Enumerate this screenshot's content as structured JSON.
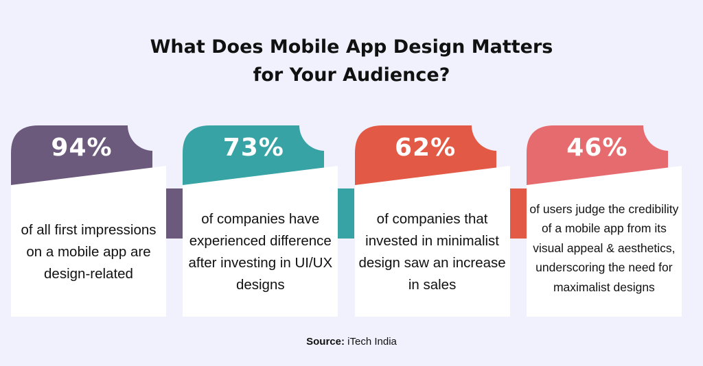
{
  "title": {
    "line1": "What Does Mobile App Design Matters",
    "line2": "for Your Audience?"
  },
  "cards": [
    {
      "value": "94%",
      "text": "of all first impressions on a mobile app are design-related",
      "color": "#6c5a7c"
    },
    {
      "value": "73%",
      "text": "of companies have experienced difference after investing in UI/UX designs",
      "color": "#38a3a5"
    },
    {
      "value": "62%",
      "text": "of companies that invested in minimalist design saw an increase in sales",
      "color": "#e25a45"
    },
    {
      "value": "46%",
      "text": "of users judge the credibility of a mobile app from its visual appeal & aesthetics, underscoring the need for maximalist designs",
      "color": "#e56b6f"
    }
  ],
  "source": {
    "label": "Source:",
    "value": "iTech India"
  }
}
